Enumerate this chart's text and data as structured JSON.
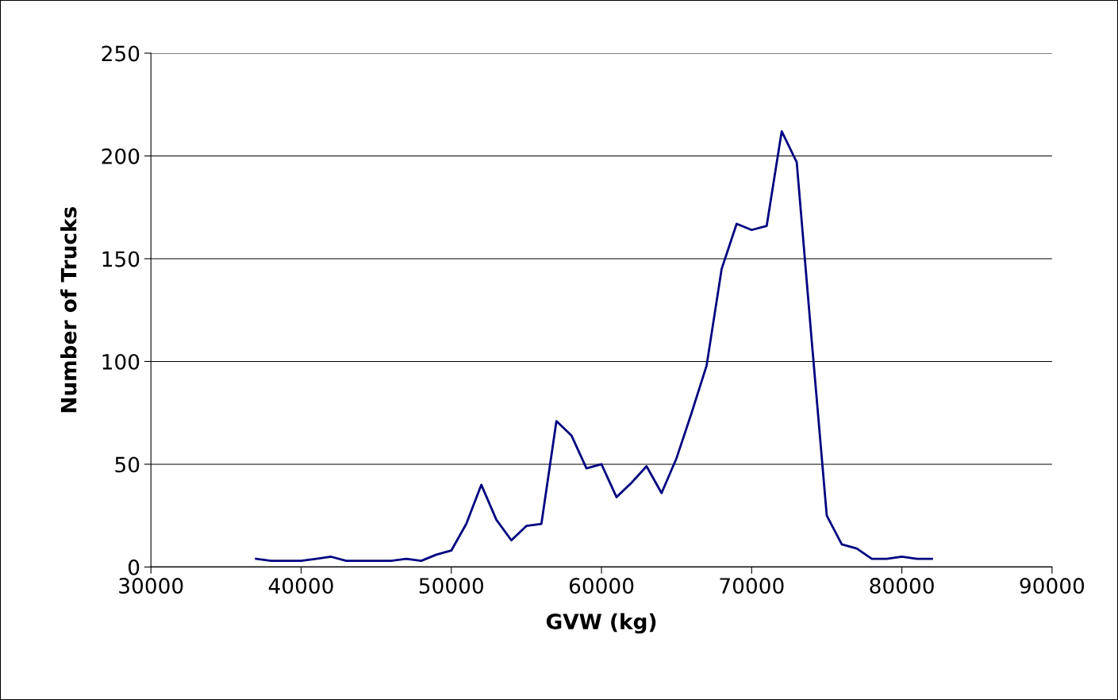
{
  "chart_data": {
    "type": "line",
    "xlabel": "GVW (kg)",
    "ylabel": "Number of Trucks",
    "x": [
      37000,
      38000,
      39000,
      40000,
      41000,
      42000,
      43000,
      44000,
      45000,
      46000,
      47000,
      48000,
      49000,
      50000,
      51000,
      52000,
      53000,
      54000,
      55000,
      56000,
      57000,
      58000,
      59000,
      60000,
      61000,
      62000,
      63000,
      64000,
      65000,
      66000,
      67000,
      68000,
      69000,
      70000,
      71000,
      72000,
      73000,
      74000,
      75000,
      76000,
      77000,
      78000,
      79000,
      80000,
      81000,
      82000
    ],
    "series": [
      {
        "color": "#000080",
        "values": [
          4,
          3,
          3,
          3,
          4,
          5,
          3,
          3,
          3,
          3,
          4,
          3,
          6,
          8,
          21,
          40,
          23,
          13,
          20,
          21,
          71,
          64,
          48,
          50,
          34,
          41,
          49,
          36,
          53,
          75,
          98,
          145,
          167,
          164,
          166,
          212,
          197,
          110,
          25,
          11,
          9,
          4,
          4,
          5,
          4,
          4
        ]
      }
    ],
    "xlim": [
      30000,
      90000
    ],
    "xticks": [
      30000,
      40000,
      50000,
      60000,
      70000,
      80000,
      90000
    ],
    "ylim": [
      0,
      250
    ],
    "yticks": [
      0,
      50,
      100,
      150,
      200,
      250
    ],
    "grid": "y",
    "legend": false,
    "marker": "none",
    "line_style": "solid"
  }
}
